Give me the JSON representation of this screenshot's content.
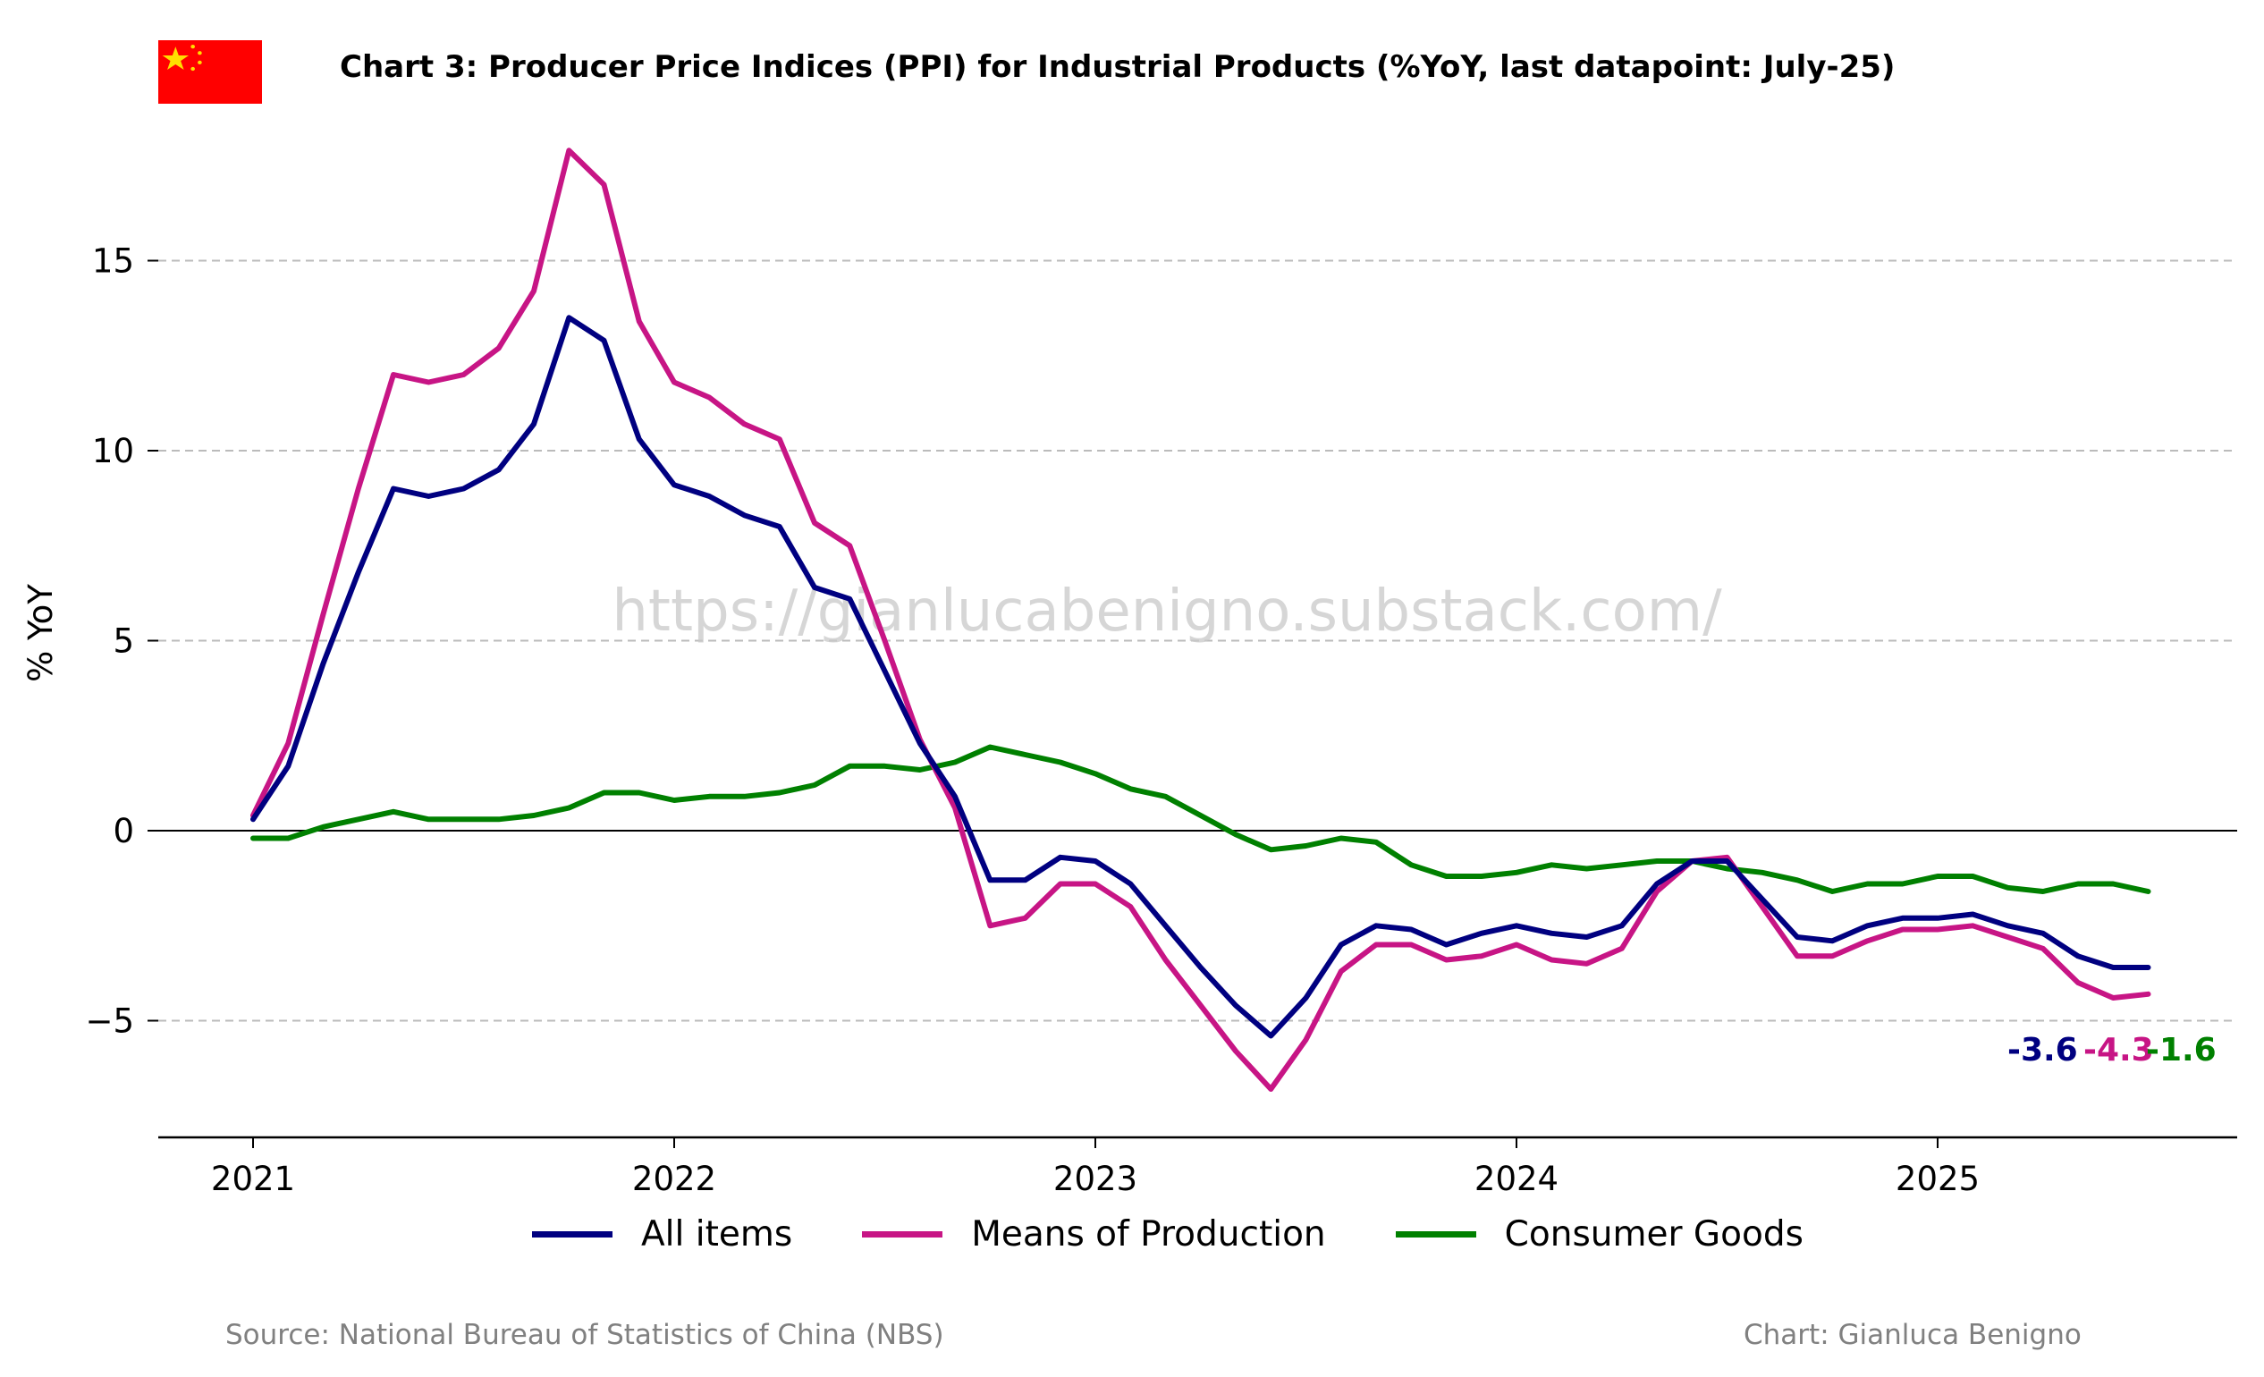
{
  "header": {
    "title": "Chart 3: Producer Price Indices (PPI) for Industrial Products (%YoY, last datapoint: July-25)",
    "flag_icon": "china-flag-icon"
  },
  "watermark": "https://gianlucabenigno.substack.com/",
  "footer": {
    "source": "Source: National Bureau of Statistics of China (NBS)",
    "credit": "Chart: Gianluca Benigno"
  },
  "colors": {
    "all_items": "#000080",
    "means_of_production": "#C71585",
    "consumer_goods": "#008000",
    "grid": "#bbbbbb",
    "flag_red": "#FF0000",
    "flag_star": "#FFDE00"
  },
  "chart_data": {
    "type": "line",
    "title": "Chart 3: Producer Price Indices (PPI) for Industrial Products (%YoY, last datapoint: July-25)",
    "xlabel": "",
    "ylabel": "% YoY",
    "x_start": "2021-01",
    "x_ticks": [
      "2021",
      "2022",
      "2023",
      "2024",
      "2025"
    ],
    "y_ticks": [
      -5,
      0,
      5,
      10,
      15
    ],
    "y_tick_labels": [
      "−5",
      "0",
      "5",
      "10",
      "15"
    ],
    "ylim": [
      -8,
      18.5
    ],
    "grid": "horizontal dashed",
    "legend": "bottom-center",
    "series": [
      {
        "name": "All items",
        "color": "#000080",
        "last_label": "-3.6",
        "values": [
          0.3,
          1.7,
          4.4,
          6.8,
          9.0,
          8.8,
          9.0,
          9.5,
          10.7,
          13.5,
          12.9,
          10.3,
          9.1,
          8.8,
          8.3,
          8.0,
          6.4,
          6.1,
          4.2,
          2.3,
          0.9,
          -1.3,
          -1.3,
          -0.7,
          -0.8,
          -1.4,
          -2.5,
          -3.6,
          -4.6,
          -5.4,
          -4.4,
          -3.0,
          -2.5,
          -2.6,
          -3.0,
          -2.7,
          -2.5,
          -2.7,
          -2.8,
          -2.5,
          -1.4,
          -0.8,
          -0.8,
          -1.8,
          -2.8,
          -2.9,
          -2.5,
          -2.3,
          -2.3,
          -2.2,
          -2.5,
          -2.7,
          -3.3,
          -3.6,
          -3.6
        ]
      },
      {
        "name": "Means of Production",
        "color": "#C71585",
        "last_label": "-4.3",
        "values": [
          0.4,
          2.3,
          5.7,
          9.0,
          12.0,
          11.8,
          12.0,
          12.7,
          14.2,
          17.9,
          17.0,
          13.4,
          11.8,
          11.4,
          10.7,
          10.3,
          8.1,
          7.5,
          5.0,
          2.4,
          0.6,
          -2.5,
          -2.3,
          -1.4,
          -1.4,
          -2.0,
          -3.4,
          -4.6,
          -5.8,
          -6.8,
          -5.5,
          -3.7,
          -3.0,
          -3.0,
          -3.4,
          -3.3,
          -3.0,
          -3.4,
          -3.5,
          -3.1,
          -1.6,
          -0.8,
          -0.7,
          -2.0,
          -3.3,
          -3.3,
          -2.9,
          -2.6,
          -2.6,
          -2.5,
          -2.8,
          -3.1,
          -4.0,
          -4.4,
          -4.3
        ]
      },
      {
        "name": "Consumer Goods",
        "color": "#008000",
        "last_label": "-1.6",
        "values": [
          -0.2,
          -0.2,
          0.1,
          0.3,
          0.5,
          0.3,
          0.3,
          0.3,
          0.4,
          0.6,
          1.0,
          1.0,
          0.8,
          0.9,
          0.9,
          1.0,
          1.2,
          1.7,
          1.7,
          1.6,
          1.8,
          2.2,
          2.0,
          1.8,
          1.5,
          1.1,
          0.9,
          0.4,
          -0.1,
          -0.5,
          -0.4,
          -0.2,
          -0.3,
          -0.9,
          -1.2,
          -1.2,
          -1.1,
          -0.9,
          -1.0,
          -0.9,
          -0.8,
          -0.8,
          -1.0,
          -1.1,
          -1.3,
          -1.6,
          -1.4,
          -1.4,
          -1.2,
          -1.2,
          -1.5,
          -1.6,
          -1.4,
          -1.4,
          -1.6
        ]
      }
    ]
  }
}
